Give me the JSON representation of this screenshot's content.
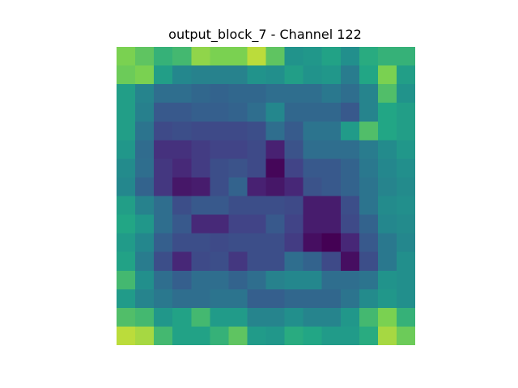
{
  "chart_data": {
    "type": "heatmap",
    "title": "output_block_7 - Channel 122",
    "xlabel": "",
    "ylabel": "",
    "axes_visible": false,
    "grid": false,
    "colormap": "viridis",
    "value_range": [
      0,
      1
    ],
    "rows": 16,
    "cols": 16,
    "values": [
      [
        0.88,
        0.84,
        0.78,
        0.8,
        0.9,
        0.88,
        0.88,
        0.94,
        0.84,
        0.64,
        0.66,
        0.72,
        0.62,
        0.76,
        0.78,
        0.78
      ],
      [
        0.86,
        0.88,
        0.7,
        0.58,
        0.55,
        0.55,
        0.55,
        0.64,
        0.62,
        0.7,
        0.64,
        0.66,
        0.52,
        0.74,
        0.88,
        0.7
      ],
      [
        0.7,
        0.56,
        0.45,
        0.45,
        0.42,
        0.4,
        0.42,
        0.42,
        0.45,
        0.45,
        0.45,
        0.5,
        0.45,
        0.56,
        0.82,
        0.64
      ],
      [
        0.7,
        0.54,
        0.35,
        0.35,
        0.38,
        0.38,
        0.4,
        0.45,
        0.58,
        0.42,
        0.42,
        0.42,
        0.35,
        0.56,
        0.74,
        0.7
      ],
      [
        0.7,
        0.48,
        0.28,
        0.3,
        0.28,
        0.28,
        0.28,
        0.3,
        0.45,
        0.36,
        0.48,
        0.48,
        0.68,
        0.82,
        0.74,
        0.7
      ],
      [
        0.66,
        0.44,
        0.18,
        0.18,
        0.22,
        0.25,
        0.25,
        0.28,
        0.12,
        0.32,
        0.45,
        0.45,
        0.45,
        0.52,
        0.6,
        0.66
      ],
      [
        0.6,
        0.45,
        0.2,
        0.15,
        0.22,
        0.3,
        0.32,
        0.28,
        0.02,
        0.25,
        0.35,
        0.35,
        0.4,
        0.5,
        0.58,
        0.62
      ],
      [
        0.58,
        0.4,
        0.2,
        0.08,
        0.1,
        0.3,
        0.4,
        0.12,
        0.08,
        0.14,
        0.32,
        0.35,
        0.4,
        0.48,
        0.56,
        0.6
      ],
      [
        0.7,
        0.55,
        0.45,
        0.3,
        0.35,
        0.35,
        0.3,
        0.3,
        0.3,
        0.28,
        0.1,
        0.1,
        0.3,
        0.48,
        0.6,
        0.62
      ],
      [
        0.74,
        0.66,
        0.45,
        0.35,
        0.15,
        0.15,
        0.25,
        0.25,
        0.35,
        0.25,
        0.1,
        0.1,
        0.28,
        0.4,
        0.58,
        0.6
      ],
      [
        0.68,
        0.58,
        0.38,
        0.3,
        0.3,
        0.28,
        0.3,
        0.3,
        0.3,
        0.22,
        0.05,
        0.0,
        0.14,
        0.35,
        0.5,
        0.58
      ],
      [
        0.72,
        0.52,
        0.3,
        0.14,
        0.28,
        0.3,
        0.2,
        0.3,
        0.3,
        0.45,
        0.4,
        0.28,
        0.05,
        0.3,
        0.5,
        0.62
      ],
      [
        0.8,
        0.62,
        0.45,
        0.38,
        0.45,
        0.45,
        0.4,
        0.45,
        0.55,
        0.58,
        0.58,
        0.45,
        0.45,
        0.48,
        0.64,
        0.62
      ],
      [
        0.68,
        0.56,
        0.5,
        0.45,
        0.45,
        0.48,
        0.48,
        0.38,
        0.38,
        0.42,
        0.42,
        0.42,
        0.48,
        0.6,
        0.66,
        0.62
      ],
      [
        0.82,
        0.8,
        0.66,
        0.72,
        0.8,
        0.68,
        0.68,
        0.56,
        0.56,
        0.62,
        0.56,
        0.56,
        0.66,
        0.8,
        0.88,
        0.78
      ],
      [
        0.94,
        0.92,
        0.8,
        0.72,
        0.72,
        0.78,
        0.84,
        0.68,
        0.66,
        0.76,
        0.74,
        0.68,
        0.68,
        0.76,
        0.92,
        0.86
      ]
    ]
  }
}
